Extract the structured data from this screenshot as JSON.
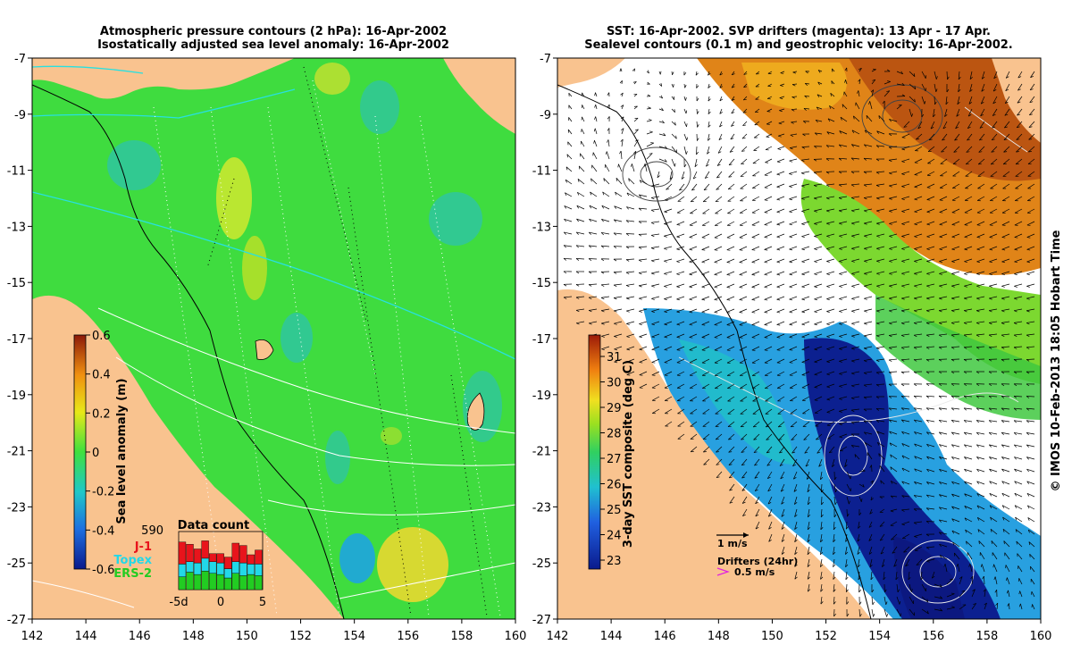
{
  "left_panel": {
    "title_line1": "Atmospheric pressure contours (2 hPa): 16-Apr-2002",
    "title_line2": "Isostatically adjusted sea level anomaly: 16-Apr-2002",
    "colorbar": {
      "label": "Sea level anomaly (m)",
      "ticks": [
        "0.6",
        "0.4",
        "0.2",
        "0",
        "-0.2",
        "-0.4",
        "-0.6"
      ]
    },
    "data_count": {
      "title": "Data count",
      "max_label": "590",
      "legend": [
        {
          "name": "J-1",
          "color": "#e8141c"
        },
        {
          "name": "Topex",
          "color": "#22d8e8"
        },
        {
          "name": "ERS-2",
          "color": "#22cc22"
        }
      ],
      "x_labels": [
        "-5d",
        "0",
        "5"
      ],
      "bars": [
        {
          "ers2": 0.22,
          "topex": 0.22,
          "j1": 0.38
        },
        {
          "ers2": 0.3,
          "topex": 0.18,
          "j1": 0.3
        },
        {
          "ers2": 0.26,
          "topex": 0.2,
          "j1": 0.24
        },
        {
          "ers2": 0.32,
          "topex": 0.22,
          "j1": 0.3
        },
        {
          "ers2": 0.28,
          "topex": 0.2,
          "j1": 0.14
        },
        {
          "ers2": 0.26,
          "topex": 0.2,
          "j1": 0.16
        },
        {
          "ers2": 0.2,
          "topex": 0.16,
          "j1": 0.2
        },
        {
          "ers2": 0.28,
          "topex": 0.2,
          "j1": 0.32
        },
        {
          "ers2": 0.24,
          "topex": 0.22,
          "j1": 0.3
        },
        {
          "ers2": 0.26,
          "topex": 0.18,
          "j1": 0.16
        },
        {
          "ers2": 0.24,
          "topex": 0.2,
          "j1": 0.24
        }
      ]
    }
  },
  "right_panel": {
    "title_line1": "SST: 16-Apr-2002. SVP drifters (magenta): 13 Apr - 17 Apr.",
    "title_line2": "Sealevel contours (0.1 m) and geostrophic velocity: 16-Apr-2002.",
    "colorbar": {
      "label": "3-day SST composite (deg C)",
      "ticks": [
        "31",
        "30",
        "29",
        "28",
        "27",
        "26",
        "25",
        "24",
        "23"
      ]
    },
    "scale_label": "1 m/s",
    "drifter_label": "Drifters (24hr)",
    "drifter_speed": "0.5 m/s"
  },
  "axes": {
    "x_ticks": [
      "142",
      "144",
      "146",
      "148",
      "150",
      "152",
      "154",
      "156",
      "158",
      "160"
    ],
    "y_ticks": [
      "-7",
      "-9",
      "-11",
      "-13",
      "-15",
      "-17",
      "-19",
      "-21",
      "-23",
      "-25",
      "-27"
    ]
  },
  "credit": "© IMOS 10-Feb-2013 18:05 Hobart Time",
  "colors": {
    "land": "#f9c38f",
    "ocean_green": "#3fdc3f",
    "no_data": "#ffffff"
  }
}
